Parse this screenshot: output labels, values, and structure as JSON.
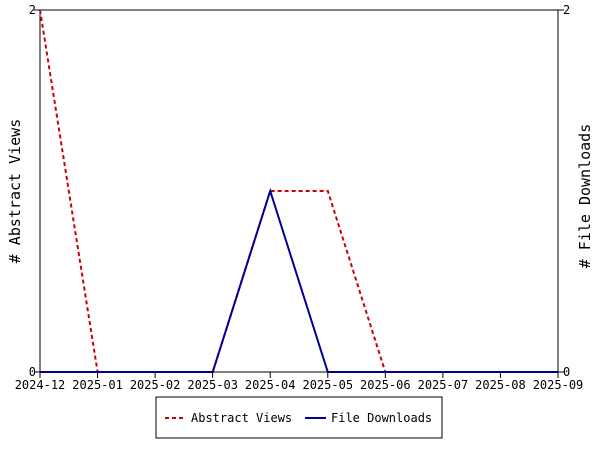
{
  "chart_data": {
    "type": "line",
    "x_labels": [
      "2024-12",
      "2025-01",
      "2025-02",
      "2025-03",
      "2025-04",
      "2025-05",
      "2025-06",
      "2025-07",
      "2025-08",
      "2025-09"
    ],
    "series": [
      {
        "name": "Abstract Views",
        "axis": "left",
        "color": "#cc0000",
        "style": "dashed",
        "values": [
          2,
          0,
          0,
          0,
          1,
          1,
          0,
          0,
          0,
          0
        ]
      },
      {
        "name": "File Downloads",
        "axis": "right",
        "color": "#000099",
        "style": "solid",
        "values": [
          0,
          0,
          0,
          0,
          1,
          0,
          0,
          0,
          0,
          0
        ]
      }
    ],
    "ylabel_left": "# Abstract Views",
    "ylabel_right": "# File Downloads",
    "ylim_left": [
      0,
      2
    ],
    "ylim_right": [
      0,
      2
    ],
    "y_ticks_left": [
      "0",
      "2"
    ],
    "y_ticks_right": [
      "0",
      "2"
    ],
    "grid": false,
    "legend_position": "bottom-center"
  }
}
